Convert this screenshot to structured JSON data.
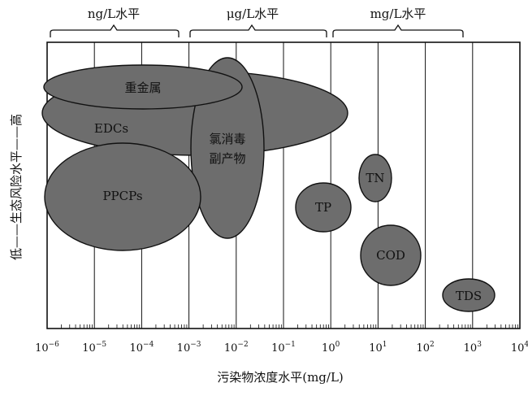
{
  "diagram": {
    "bands": [
      {
        "label": "ng/L水平"
      },
      {
        "label": "μg/L水平"
      },
      {
        "label": "mg/L水平"
      }
    ],
    "x_axis": {
      "title": "污染物浓度水平(mg/L)",
      "ticks": [
        {
          "base": "10",
          "exp": "−6"
        },
        {
          "base": "10",
          "exp": "−5"
        },
        {
          "base": "10",
          "exp": "−4"
        },
        {
          "base": "10",
          "exp": "−3"
        },
        {
          "base": "10",
          "exp": "−2"
        },
        {
          "base": "10",
          "exp": "−1"
        },
        {
          "base": "10",
          "exp": "0"
        },
        {
          "base": "10",
          "exp": "1"
        },
        {
          "base": "10",
          "exp": "2"
        },
        {
          "base": "10",
          "exp": "3"
        },
        {
          "base": "10",
          "exp": "4"
        }
      ]
    },
    "y_axis": {
      "title": "低——生态风险水平——高"
    },
    "groups": [
      {
        "id": "edcs",
        "label": "EDCs"
      },
      {
        "id": "chlorine",
        "label": "氯消毒副产物"
      },
      {
        "id": "heavy",
        "label": "重金属"
      },
      {
        "id": "ppcps",
        "label": "PPCPs"
      },
      {
        "id": "tp",
        "label": "TP"
      },
      {
        "id": "tn",
        "label": "TN"
      },
      {
        "id": "cod",
        "label": "COD"
      },
      {
        "id": "tds",
        "label": "TDS"
      }
    ]
  }
}
